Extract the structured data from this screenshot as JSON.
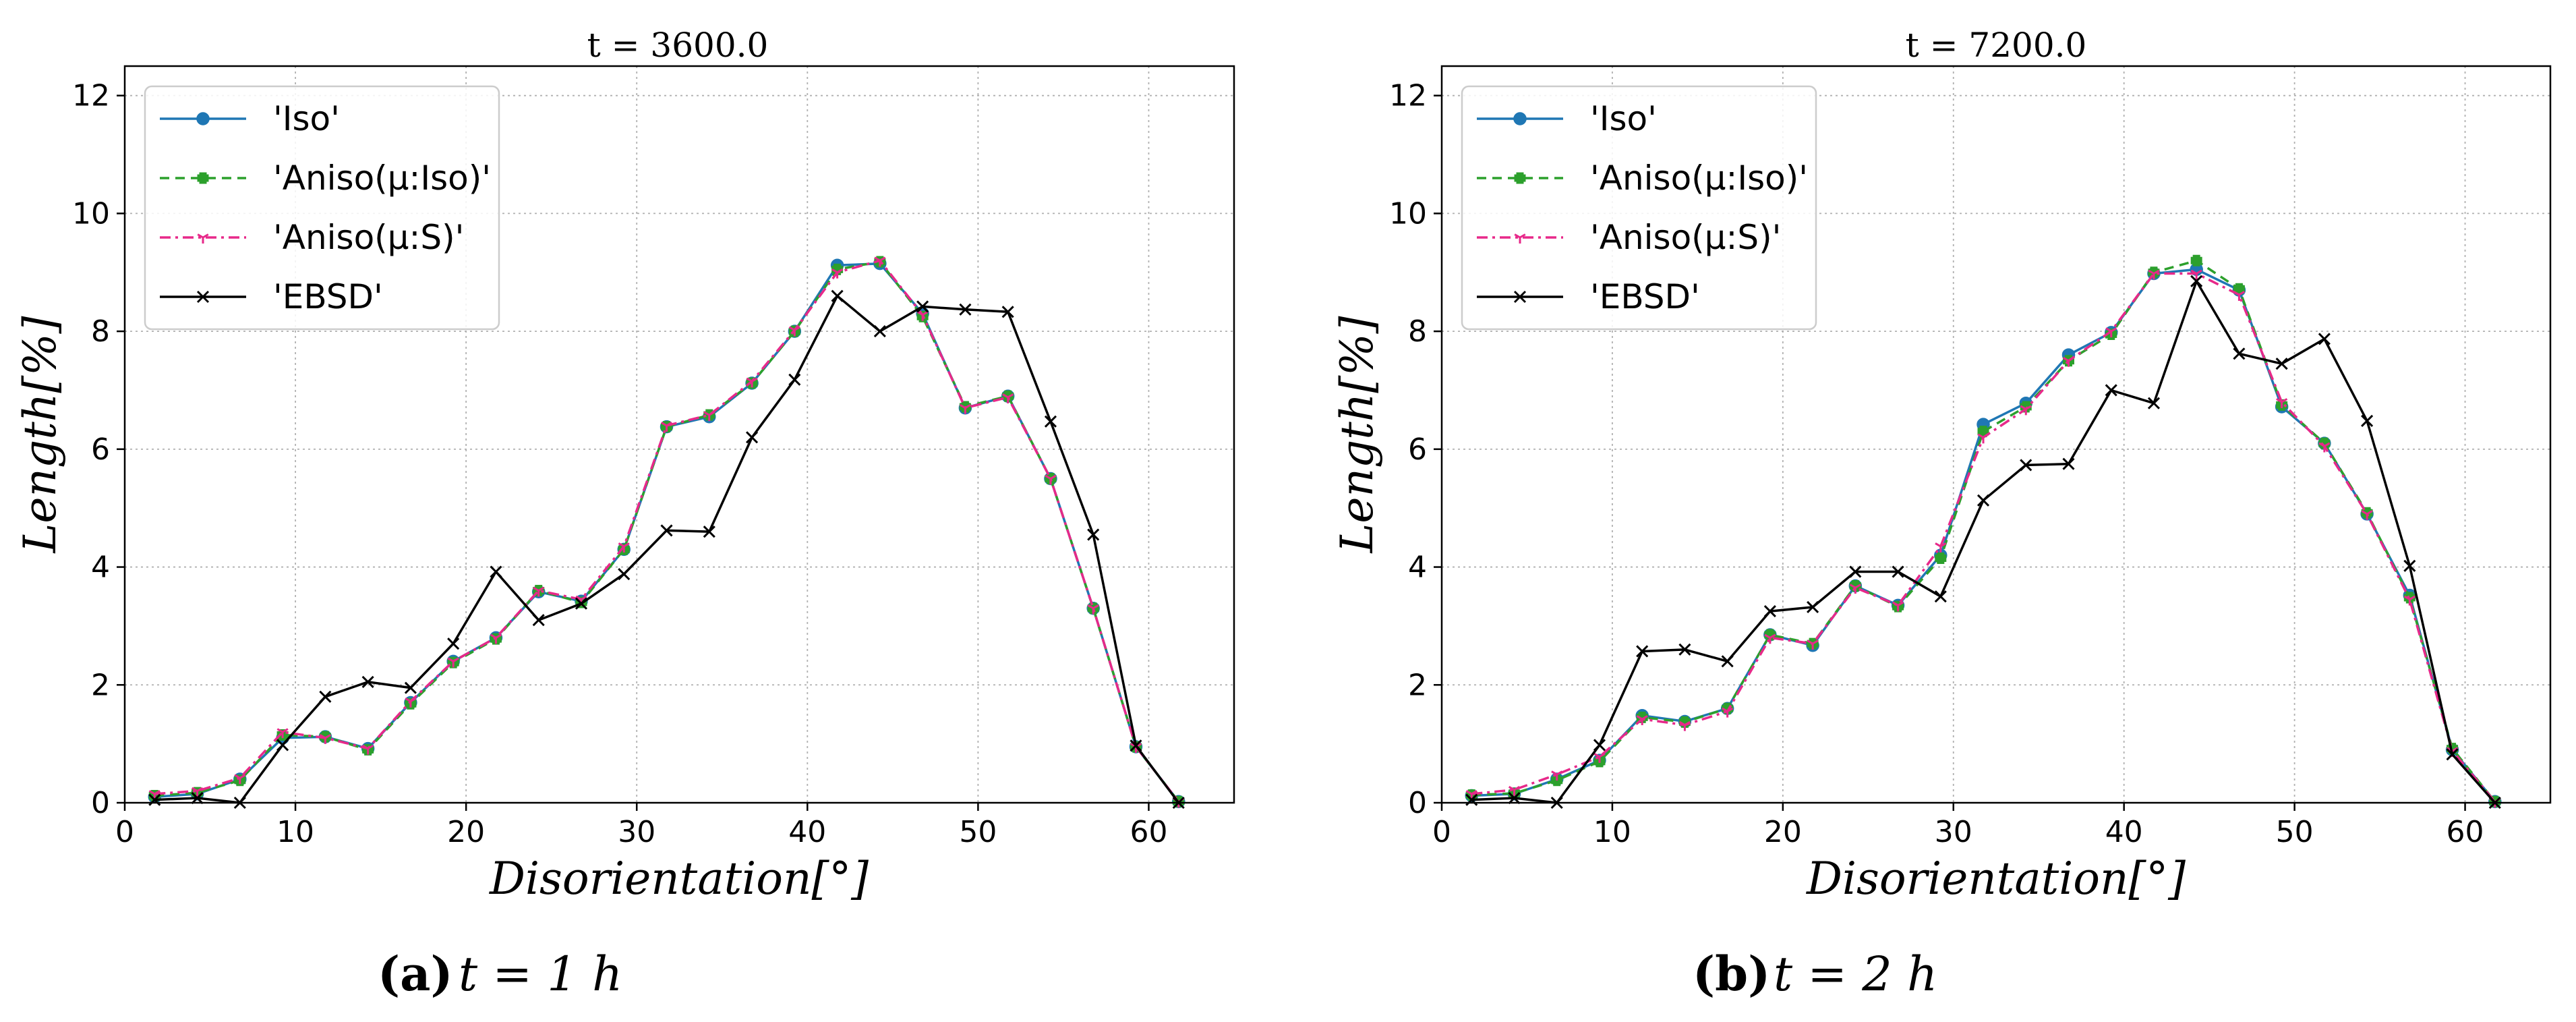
{
  "chart_data": [
    {
      "type": "line",
      "title": "t = 3600.0",
      "xlabel": "Disorientation[°]",
      "ylabel": "Length[%]",
      "xlim": [
        0,
        65
      ],
      "ylim": [
        0,
        12.5
      ],
      "xticks": [
        "0",
        "10",
        "20",
        "30",
        "40",
        "50",
        "60"
      ],
      "yticks": [
        "0",
        "2",
        "4",
        "6",
        "8",
        "10",
        "12"
      ],
      "grid": true,
      "legend_position": "top-left",
      "caption": {
        "label": "(a)",
        "text": "t = 1 h"
      },
      "x": [
        1.75,
        4.25,
        6.75,
        9.25,
        11.75,
        14.25,
        16.75,
        19.25,
        21.75,
        24.25,
        26.75,
        29.25,
        31.75,
        34.25,
        36.75,
        39.25,
        41.75,
        44.25,
        46.75,
        49.25,
        51.75,
        54.25,
        56.75,
        59.25,
        61.75
      ],
      "series": [
        {
          "name": "'Iso'",
          "color": "#1f77b4",
          "style": "solid",
          "marker": "circle",
          "values": [
            0.1,
            0.15,
            0.4,
            1.1,
            1.12,
            0.92,
            1.7,
            2.4,
            2.8,
            3.58,
            3.42,
            4.3,
            6.38,
            6.55,
            7.12,
            8.0,
            9.12,
            9.15,
            8.3,
            6.7,
            6.9,
            5.5,
            3.3,
            0.95,
            0.02
          ]
        },
        {
          "name": "'Aniso(μ:Iso)'",
          "color": "#2ca02c",
          "style": "dashed",
          "marker": "plus",
          "values": [
            0.12,
            0.17,
            0.38,
            1.15,
            1.12,
            0.9,
            1.68,
            2.38,
            2.78,
            3.6,
            3.4,
            4.3,
            6.38,
            6.58,
            7.12,
            8.0,
            9.05,
            9.18,
            8.25,
            6.72,
            6.9,
            5.5,
            3.3,
            0.95,
            0.02
          ]
        },
        {
          "name": "'Aniso(μ:S)'",
          "color": "#e7298a",
          "style": "dashdot",
          "marker": "tri",
          "values": [
            0.15,
            0.2,
            0.42,
            1.2,
            1.1,
            0.92,
            1.72,
            2.4,
            2.8,
            3.6,
            3.45,
            4.35,
            6.4,
            6.58,
            7.15,
            8.02,
            9.0,
            9.2,
            8.28,
            6.7,
            6.88,
            5.5,
            3.3,
            0.95,
            0.02
          ]
        },
        {
          "name": "'EBSD'",
          "color": "#000000",
          "style": "solid",
          "marker": "x",
          "values": [
            0.05,
            0.08,
            0.0,
            0.98,
            1.8,
            2.05,
            1.95,
            2.7,
            3.92,
            3.1,
            3.38,
            3.88,
            4.62,
            4.6,
            6.2,
            7.18,
            8.6,
            8.0,
            8.42,
            8.37,
            8.33,
            6.47,
            4.55,
            0.97,
            0.0
          ]
        }
      ]
    },
    {
      "type": "line",
      "title": "t = 7200.0",
      "xlabel": "Disorientation[°]",
      "ylabel": "Length[%]",
      "xlim": [
        0,
        65
      ],
      "ylim": [
        0,
        12.5
      ],
      "xticks": [
        "0",
        "10",
        "20",
        "30",
        "40",
        "50",
        "60"
      ],
      "yticks": [
        "0",
        "2",
        "4",
        "6",
        "8",
        "10",
        "12"
      ],
      "grid": true,
      "legend_position": "top-left",
      "caption": {
        "label": "(b)",
        "text": "t = 2 h"
      },
      "x": [
        1.75,
        4.25,
        6.75,
        9.25,
        11.75,
        14.25,
        16.75,
        19.25,
        21.75,
        24.25,
        26.75,
        29.25,
        31.75,
        34.25,
        36.75,
        39.25,
        41.75,
        44.25,
        46.75,
        49.25,
        51.75,
        54.25,
        56.75,
        59.25,
        61.75
      ],
      "series": [
        {
          "name": "'Iso'",
          "color": "#1f77b4",
          "style": "solid",
          "marker": "circle",
          "values": [
            0.12,
            0.15,
            0.4,
            0.72,
            1.48,
            1.38,
            1.6,
            2.85,
            2.67,
            3.68,
            3.35,
            4.2,
            6.42,
            6.78,
            7.6,
            7.98,
            8.98,
            9.05,
            8.7,
            6.72,
            6.1,
            4.9,
            3.52,
            0.9,
            0.02
          ]
        },
        {
          "name": "'Aniso(μ:Iso)'",
          "color": "#2ca02c",
          "style": "dashed",
          "marker": "plus",
          "values": [
            0.13,
            0.16,
            0.38,
            0.7,
            1.45,
            1.37,
            1.6,
            2.85,
            2.7,
            3.68,
            3.33,
            4.15,
            6.3,
            6.72,
            7.5,
            7.95,
            9.0,
            9.2,
            8.72,
            6.75,
            6.1,
            4.92,
            3.48,
            0.92,
            0.02
          ]
        },
        {
          "name": "'Aniso(μ:S)'",
          "color": "#e7298a",
          "style": "dashdot",
          "marker": "tri",
          "values": [
            0.15,
            0.22,
            0.48,
            0.78,
            1.42,
            1.32,
            1.55,
            2.8,
            2.7,
            3.65,
            3.35,
            4.35,
            6.2,
            6.68,
            7.5,
            8.0,
            8.98,
            8.98,
            8.62,
            6.8,
            6.05,
            4.9,
            3.45,
            0.88,
            0.02
          ]
        },
        {
          "name": "'EBSD'",
          "color": "#000000",
          "style": "solid",
          "marker": "x",
          "values": [
            0.05,
            0.08,
            0.0,
            0.98,
            2.57,
            2.6,
            2.4,
            3.25,
            3.32,
            3.92,
            3.92,
            3.5,
            5.13,
            5.73,
            5.75,
            7.0,
            6.78,
            8.85,
            7.62,
            7.45,
            7.87,
            6.48,
            4.02,
            0.82,
            0.0
          ]
        }
      ]
    }
  ]
}
